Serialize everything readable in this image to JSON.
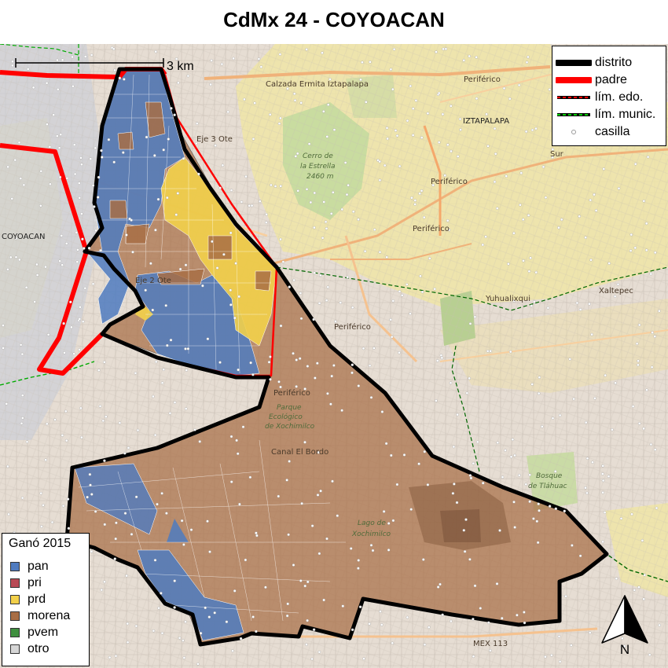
{
  "title": "CdMx 24 - COYOACAN",
  "scale": {
    "label": "3 km"
  },
  "legend": {
    "items": [
      {
        "label": "distrito",
        "color": "#000000",
        "style": "thick-line"
      },
      {
        "label": "padre",
        "color": "#ff0000",
        "style": "thick-line"
      },
      {
        "label": "lím. edo.",
        "color": "#000000",
        "accent": "#ff0000",
        "style": "dashed-line"
      },
      {
        "label": "lím. munic.",
        "color": "#000000",
        "accent": "#00cc00",
        "style": "dashed-line"
      },
      {
        "label": "casilla",
        "color": "#999999",
        "style": "circle"
      }
    ]
  },
  "winner_legend": {
    "title": "Ganó 2015",
    "items": [
      {
        "label": "pan",
        "color": "#4f7bbf"
      },
      {
        "label": "pri",
        "color": "#b84a55"
      },
      {
        "label": "prd",
        "color": "#f2d04a"
      },
      {
        "label": "morena",
        "color": "#a86e45"
      },
      {
        "label": "pvem",
        "color": "#3f8f3f"
      },
      {
        "label": "otro",
        "color": "#d6d6d6"
      }
    ]
  },
  "map_labels": {
    "coyoacan": "COYOACAN",
    "iztapalapa": "IZTAPALAPA",
    "cerro_1": "Cerro de",
    "cerro_2": "la Estrella",
    "cerro_3": "2460 m",
    "periferico_1": "Periférico",
    "periferico_2": "Periférico",
    "periferico_3": "Periférico",
    "periferico_4": "Periférico",
    "periferico_5": "Periférico",
    "parque_1": "Parque",
    "parque_2": "Ecológico",
    "parque_3": "de Xochimilco",
    "lago_1": "Lago de",
    "lago_2": "Xochimilco",
    "yuhualixqui": "Yuhualixqui",
    "xaltepec": "Xaltepec",
    "bosque_1": "Bosque",
    "bosque_2": "de Tláhuac",
    "mex113": "MEX 113",
    "canal": "Canal El Bordo",
    "eje_3_ote": "Eje 3 Ote",
    "calzada": "Calzada Ermita Iztapalapa",
    "eje_2_ote": "Eje 2 Ote",
    "sur": "Sur"
  },
  "north_arrow": {
    "label": "N"
  }
}
